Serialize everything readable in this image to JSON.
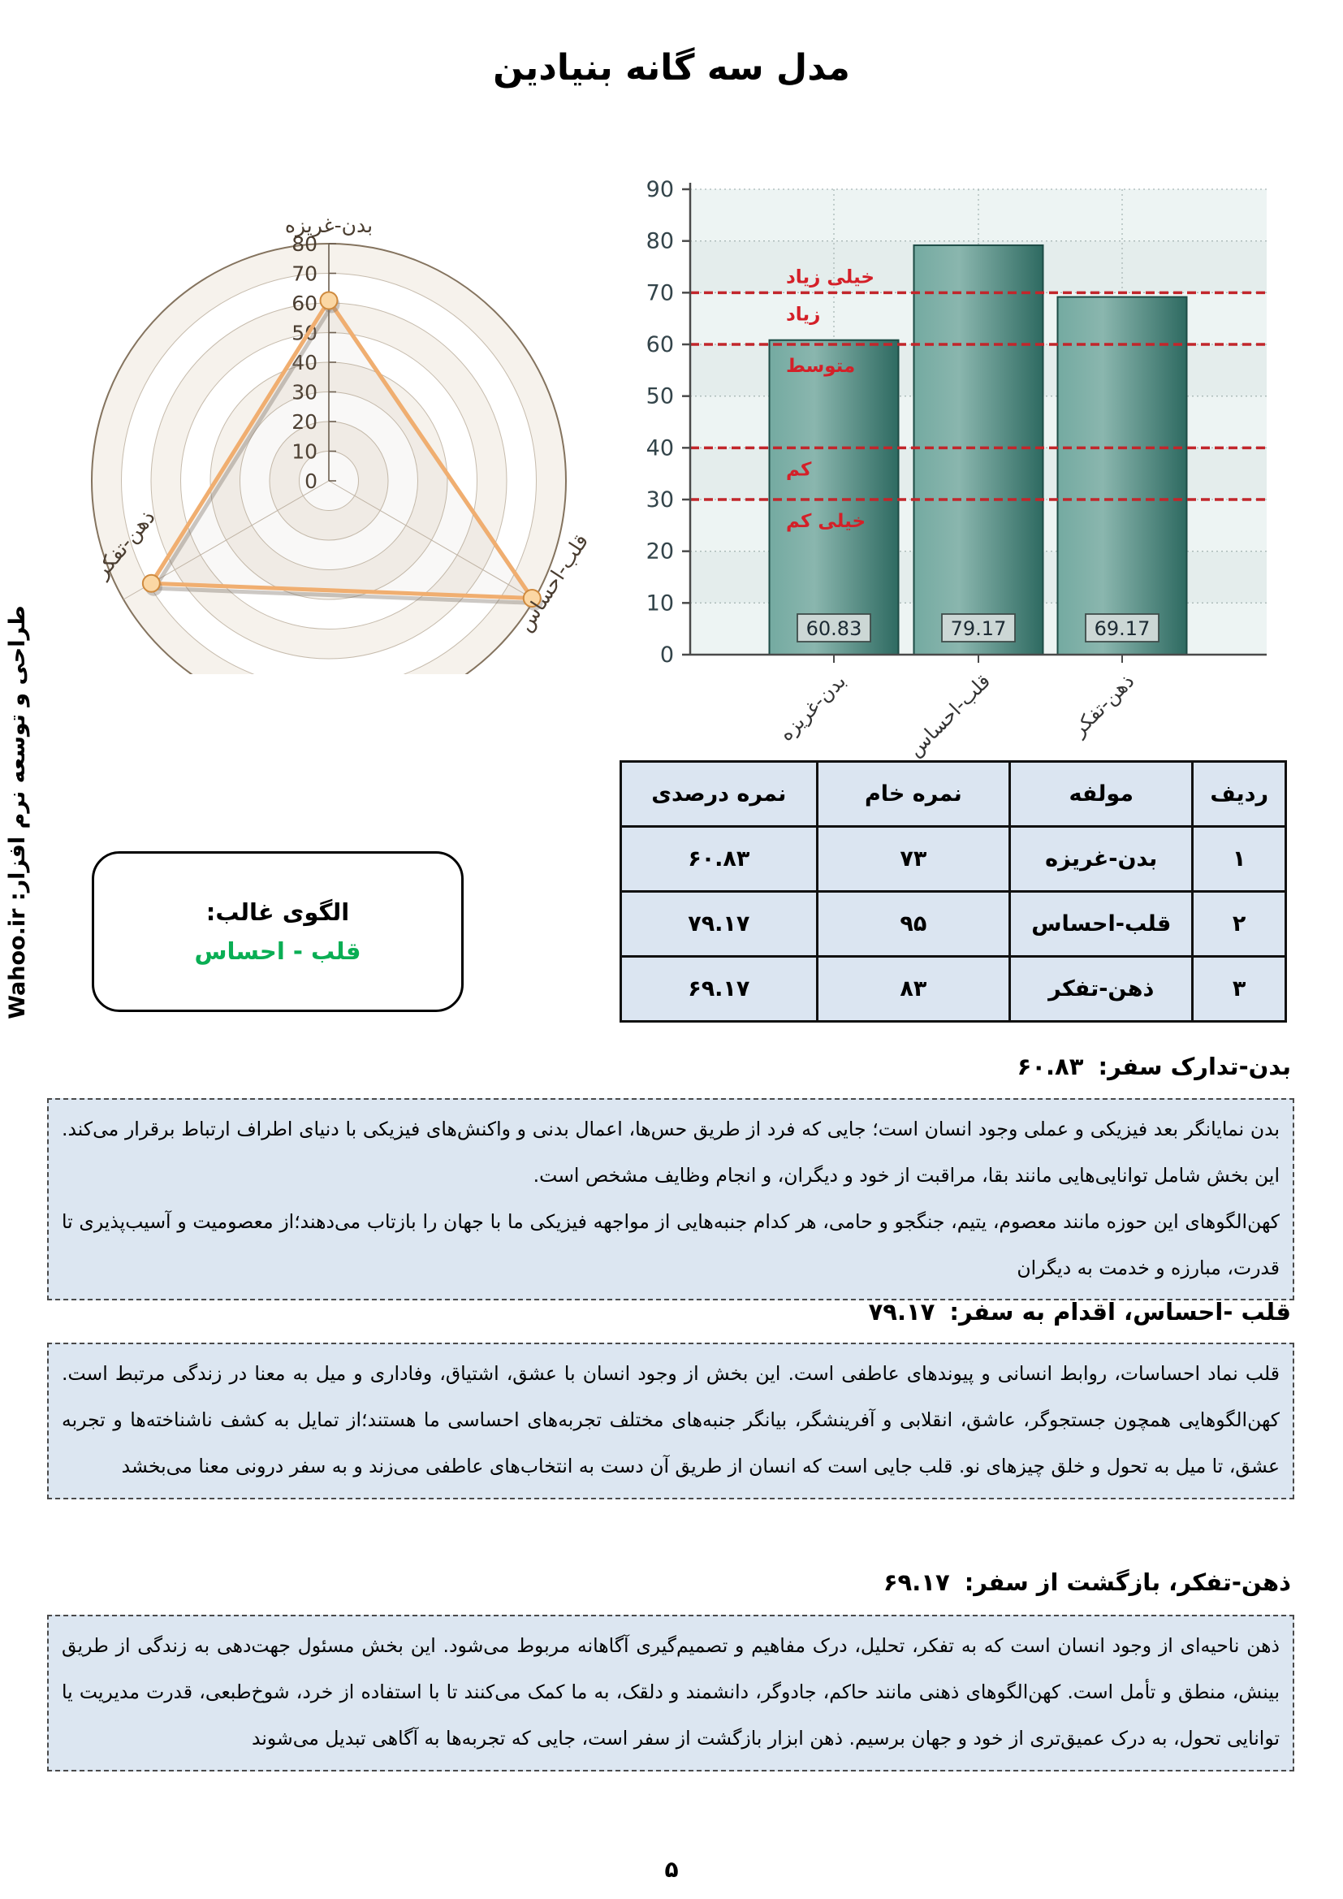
{
  "page": {
    "title": "مدل سه گانه بنیادین",
    "page_number": "۵",
    "credit": "طراحی و توسعه نرم افزار:  Wahoo.ir"
  },
  "chart_data": [
    {
      "type": "radar",
      "categories": [
        "بدن-غریزه",
        "قلب-احساس",
        "ذهن-تفکر"
      ],
      "values": [
        60.83,
        79.17,
        69.17
      ],
      "rmax": 80,
      "tick_labels": [
        "0",
        "10",
        "20",
        "30",
        "40",
        "50",
        "60",
        "70",
        "80"
      ],
      "grid": "circular, 8 rings, alternating fill",
      "line_color": "#f0ae70",
      "marker_fill": "#fbd7a4",
      "marker_stroke": "#cf8a3e"
    },
    {
      "type": "bar",
      "categories": [
        "بدن-غریزه",
        "قلب-احساس",
        "ذهن-تفکر"
      ],
      "values": [
        60.83,
        79.17,
        69.17
      ],
      "bar_labels": [
        "60.83",
        "79.17",
        "69.17"
      ],
      "ylim": [
        0,
        90
      ],
      "tick_step": 10,
      "bar_color_light": "#7badа5",
      "bar_gradient": [
        "#74aaa1",
        "#8ab6ae",
        "#2e6a61"
      ],
      "bar_stroke": "#1d4b45",
      "threshold_color": "#c2262b",
      "threshold_lines": [
        {
          "y": 70,
          "label_above": "خیلی زیاد",
          "label_below": "زیاد"
        },
        {
          "y": 60,
          "label_below": "متوسط"
        },
        {
          "y": 40,
          "label_below": "کم"
        },
        {
          "y": 30,
          "label_below": "خیلی کم"
        }
      ],
      "legend": "none"
    }
  ],
  "table": {
    "headers": [
      "ردیف",
      "مولفه",
      "نمره خام",
      "نمره درصدی"
    ],
    "rows": [
      [
        "۱",
        "بدن-غریزه",
        "۷۳",
        "۶۰.۸۳"
      ],
      [
        "۲",
        "قلب-احساس",
        "۹۵",
        "۷۹.۱۷"
      ],
      [
        "۳",
        "ذهن-تفکر",
        "۸۳",
        "۶۹.۱۷"
      ]
    ]
  },
  "dominant_pattern": {
    "label": "الگوی غالب:",
    "value": "قلب - احساس",
    "value_color": "#0aae54"
  },
  "sections": [
    {
      "title": "بدن-تدارک سفر:",
      "score": "۶۰.۸۳",
      "body": "بدن نمایانگر بعد فیزیکی و عملی وجود انسان است؛ جایی که فرد از طریق حس‌ها، اعمال بدنی و واکنش‌های فیزیکی با دنیای اطراف ارتباط برقرار می‌کند. این بخش شامل توانایی‌هایی مانند بقا، مراقبت از خود و دیگران، و انجام وظایف مشخص است.\nکهن‌الگوهای این حوزه مانند معصوم، یتیم، جنگجو و حامی، هر کدام جنبه‌هایی از مواجهه فیزیکی ما با جهان را بازتاب می‌دهند؛از معصومیت و  آسیب‌پذیری تا قدرت، مبارزه و خدمت به دیگران"
    },
    {
      "title": "قلب -احساس، اقدام به سفر:",
      "score": "۷۹.۱۷",
      "body": "قلب نماد احساسات، روابط انسانی و پیوندهای عاطفی است. این بخش از وجود انسان با عشق، اشتیاق، وفاداری و میل به معنا در زندگی مرتبط است. کهن‌الگوهایی همچون جستجوگر، عاشق، انقلابی و آفرینشگر، بیانگر جنبه‌های مختلف تجربه‌های احساسی ما هستند؛از تمایل به کشف ناشناخته‌ها و تجربه عشق، تا میل به تحول و خلق چیزهای نو. قلب جایی است که انسان از طریق آن دست به انتخاب‌های عاطفی می‌زند و به سفر درونی معنا می‌بخشد"
    },
    {
      "title": "ذهن-تفکر، بازگشت از سفر:",
      "score": "۶۹.۱۷",
      "body": "ذهن ناحیه‌ای از وجود انسان است که به تفکر، تحلیل، درک مفاهیم و تصمیم‌گیری آگاهانه مربوط می‌شود. این بخش مسئول جهت‌دهی به زندگی از طریق بینش، منطق و تأمل است. کهن‌الگوهای ذهنی مانند حاکم، جادوگر، دانشمند و دلقک، به ما کمک می‌کنند تا با استفاده از خرد، شوخ‌طبعی، قدرت مدیریت یا توانایی تحول، به درک عمیق‌تری از خود و جهان برسیم. ذهن ابزار بازگشت از سفر است، جایی که تجربه‌ها به آگاهی تبدیل می‌شوند"
    }
  ]
}
